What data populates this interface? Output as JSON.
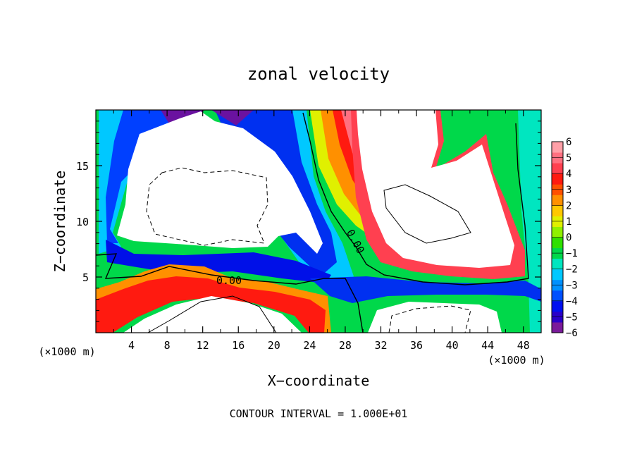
{
  "chart_data": {
    "type": "heatmap",
    "title": "zonal velocity",
    "xlabel": "X−coordinate",
    "ylabel": "Z−coordinate",
    "x_unit_left": "(×1000 m)",
    "x_unit_right": "(×1000 m)",
    "footer": "CONTOUR INTERVAL = 1.000E+01",
    "xlim": [
      0,
      50
    ],
    "ylim": [
      0,
      20
    ],
    "x_ticks": [
      "4",
      "8",
      "12",
      "16",
      "20",
      "24",
      "28",
      "32",
      "36",
      "40",
      "44",
      "48"
    ],
    "x_tick_values": [
      4,
      8,
      12,
      16,
      20,
      24,
      28,
      32,
      36,
      40,
      44,
      48
    ],
    "y_ticks": [
      "5",
      "10",
      "15"
    ],
    "y_tick_values": [
      5,
      10,
      15
    ],
    "contour_labels": [
      "0.00",
      "0.00"
    ],
    "colorbar": {
      "labels": [
        "6",
        "5",
        "4",
        "3",
        "2",
        "1",
        "0",
        "−1",
        "−2",
        "−3",
        "−4",
        "−5",
        "−6"
      ],
      "min": -6,
      "max": 6,
      "colors": [
        "#7a1a9a",
        "#2a00c8",
        "#0010f0",
        "#0050ff",
        "#0090ff",
        "#00c8ff",
        "#00e6c0",
        "#00d84a",
        "#30e000",
        "#90f000",
        "#e0f000",
        "#ffc800",
        "#ff9000",
        "#ff5000",
        "#ff1a10",
        "#ff4050",
        "#ff7080",
        "#ffa0a8"
      ],
      "saturation_color": "#ffffff"
    }
  }
}
